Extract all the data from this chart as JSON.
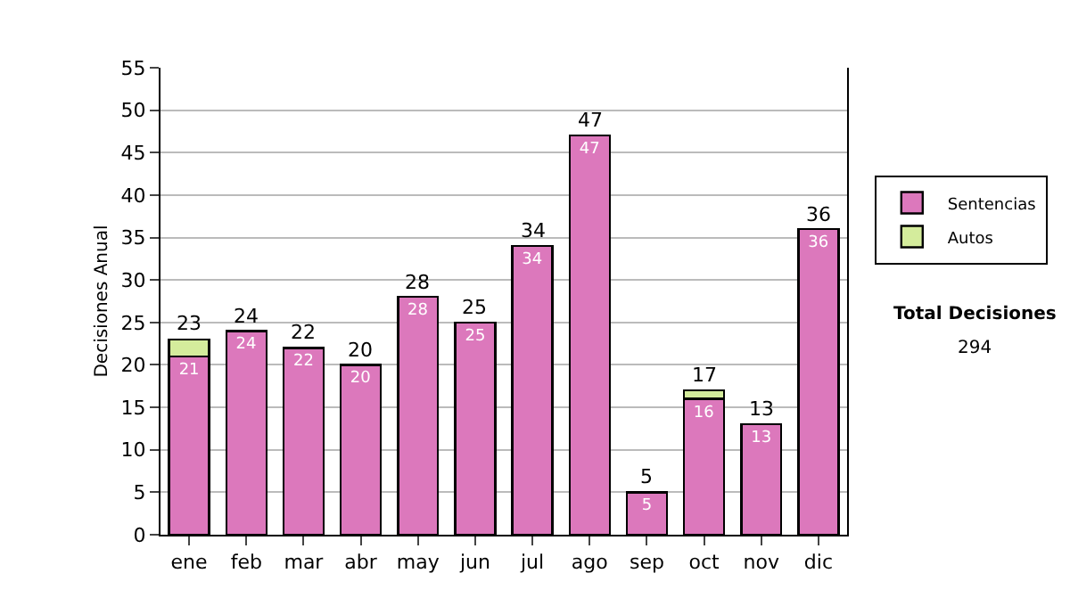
{
  "chart_data": {
    "type": "bar",
    "stacked": true,
    "ylabel": "Decisiones Anual",
    "categories": [
      "ene",
      "feb",
      "mar",
      "abr",
      "may",
      "jun",
      "jul",
      "ago",
      "sep",
      "oct",
      "nov",
      "dic"
    ],
    "series": [
      {
        "name": "Sentencias",
        "color": "#dc78bc",
        "values": [
          21,
          24,
          22,
          20,
          28,
          25,
          34,
          47,
          5,
          16,
          13,
          36
        ],
        "value_labels": [
          "21",
          "24",
          "22",
          "20",
          "28",
          "25",
          "34",
          "47",
          "5",
          "16",
          "13",
          "36"
        ]
      },
      {
        "name": "Autos",
        "color": "#d4ec9c",
        "values": [
          2,
          0,
          0,
          0,
          0,
          0,
          0,
          0,
          0,
          1,
          0,
          0
        ]
      }
    ],
    "totals": [
      "23",
      "24",
      "22",
      "20",
      "28",
      "25",
      "34",
      "47",
      "5",
      "17",
      "13",
      "36"
    ],
    "ylim": [
      0,
      55
    ],
    "yticks": [
      0,
      5,
      10,
      15,
      20,
      25,
      30,
      35,
      40,
      45,
      50,
      55
    ],
    "grid": "y",
    "legend": "right",
    "annotations": [
      "Total Decisiones",
      "294"
    ]
  }
}
